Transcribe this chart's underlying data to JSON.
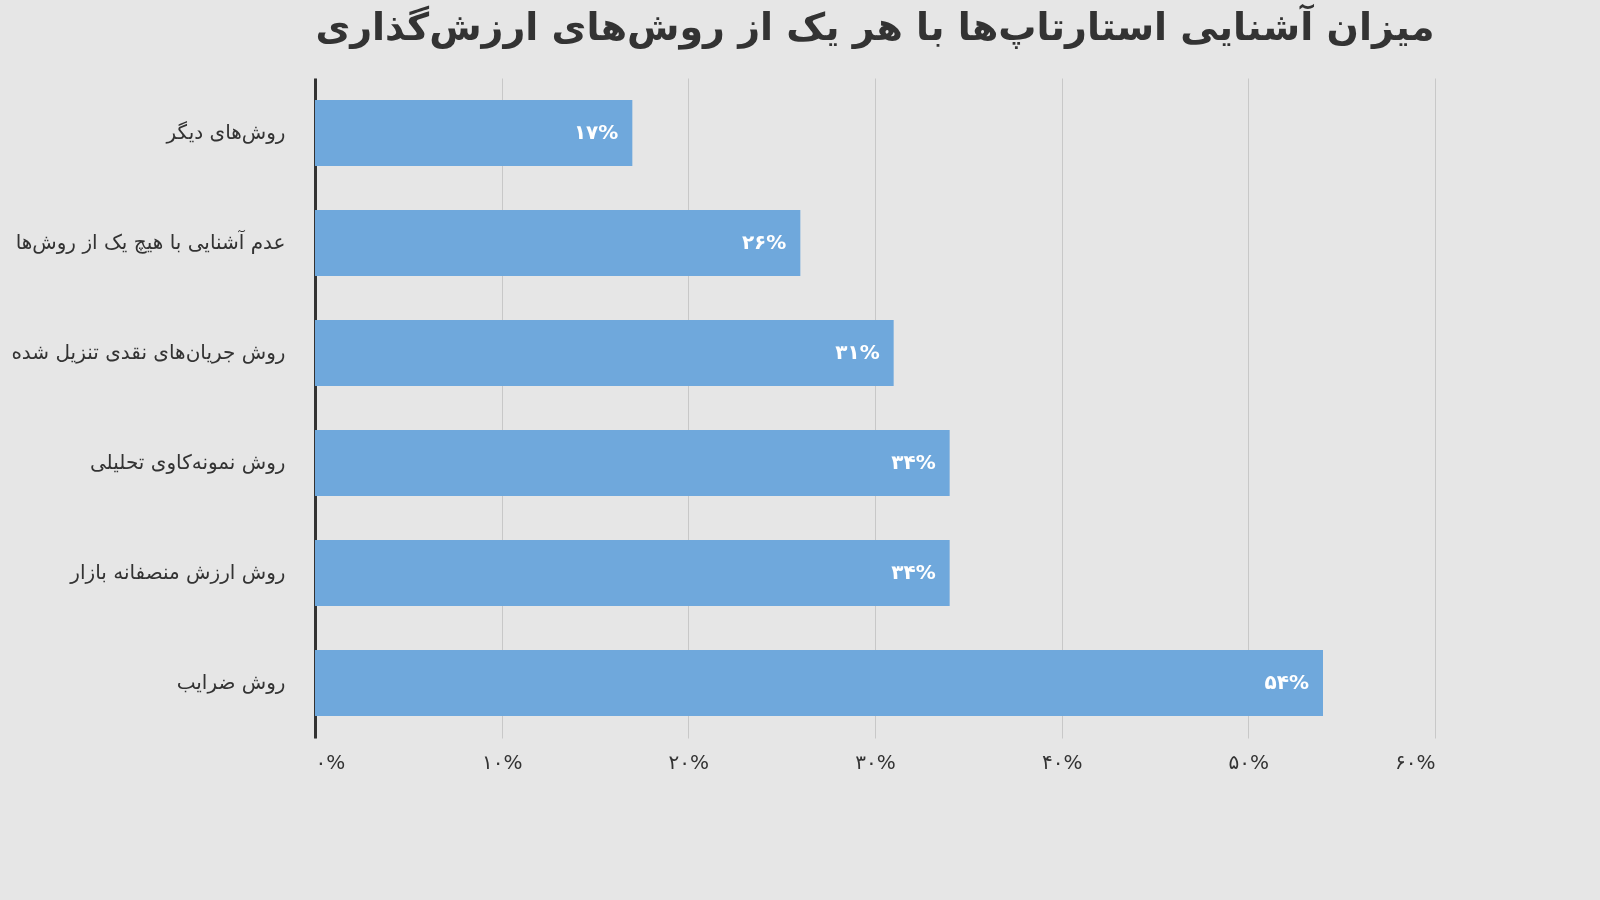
{
  "chart_data": {
    "type": "bar",
    "orientation": "horizontal",
    "title": "میزان آشنایی استارتاپ‌ها با هر یک از روش‌های ارزش‌گذاری",
    "categories": [
      "روش‌های دیگر",
      "عدم آشنایی با هیچ یک از روش‌ها",
      "روش جریان‌های نقدی تنزیل شده",
      "روش نمونه‌کاوی تحلیلی",
      "روش ارزش منصفانه بازار",
      "روش ضرایب"
    ],
    "values": [
      17,
      26,
      31,
      34,
      34,
      54
    ],
    "value_labels": [
      "۱۷%",
      "۲۶%",
      "۳۱%",
      "۳۴%",
      "۳۴%",
      "۵۴%"
    ],
    "color": "#6fa8dc",
    "xlim": [
      0,
      60
    ],
    "xticks": [
      {
        "value": 0,
        "label": "۰%"
      },
      {
        "value": 10,
        "label": "۱۰%"
      },
      {
        "value": 20,
        "label": "۲۰%"
      },
      {
        "value": 30,
        "label": "۳۰%"
      },
      {
        "value": 40,
        "label": "۴۰%"
      },
      {
        "value": 50,
        "label": "۵۰%"
      },
      {
        "value": 60,
        "label": "۶۰%"
      }
    ],
    "grid": "x"
  }
}
